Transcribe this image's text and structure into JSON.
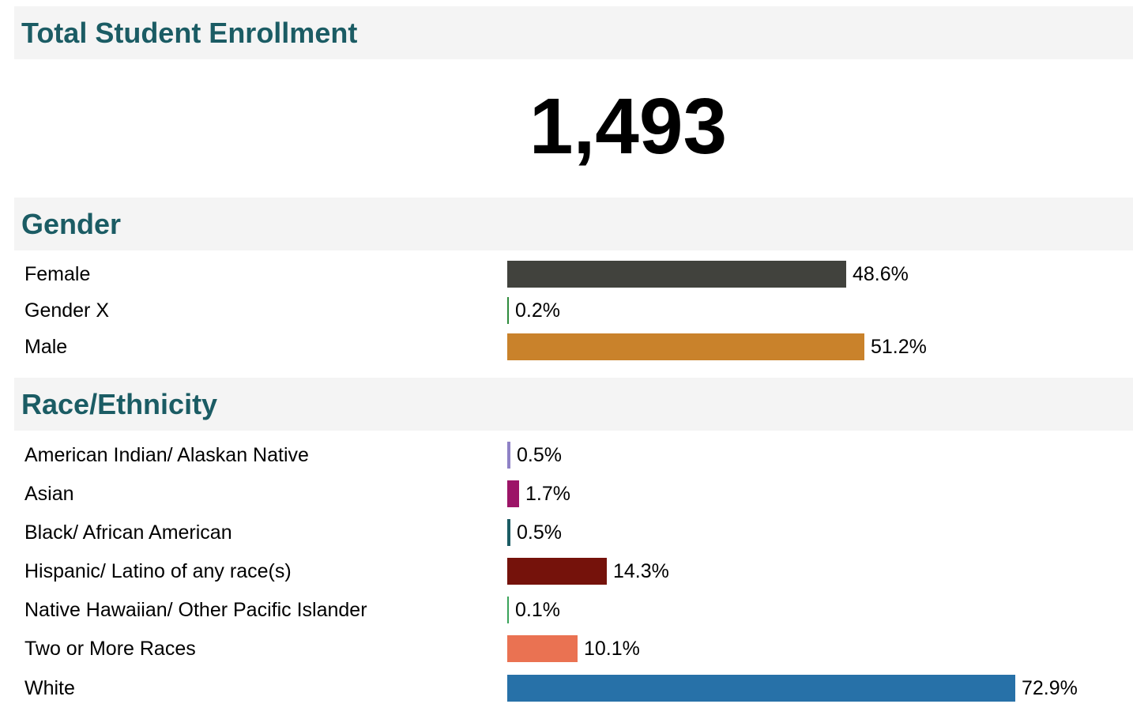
{
  "sections": {
    "total": {
      "title": "Total Student Enrollment",
      "value": "1,493"
    },
    "gender": {
      "title": "Gender"
    },
    "race": {
      "title": "Race/Ethnicity"
    }
  },
  "chart_data": [
    {
      "type": "bar",
      "orientation": "horizontal",
      "categories": [
        "Female",
        "Gender X",
        "Male"
      ],
      "values": [
        48.6,
        0.2,
        51.2
      ],
      "value_labels": [
        "48.6%",
        "0.2%",
        "51.2%"
      ],
      "colors": [
        "#41423d",
        "#2e8b3c",
        "#c9822b"
      ],
      "xlim": [
        0,
        100
      ],
      "grid": false
    },
    {
      "type": "bar",
      "orientation": "horizontal",
      "categories": [
        "American Indian/ Alaskan Native",
        "Asian",
        "Black/ African American",
        "Hispanic/ Latino of any race(s)",
        "Native Hawaiian/ Other Pacific Islander",
        "Two or More Races",
        "White"
      ],
      "values": [
        0.5,
        1.7,
        0.5,
        14.3,
        0.1,
        10.1,
        72.9
      ],
      "value_labels": [
        "0.5%",
        "1.7%",
        "0.5%",
        "14.3%",
        "0.1%",
        "10.1%",
        "72.9%"
      ],
      "colors": [
        "#8f82c6",
        "#9c1467",
        "#1b5c64",
        "#75120b",
        "#3aa35a",
        "#ea7252",
        "#2771a8"
      ],
      "xlim": [
        0,
        100
      ],
      "grid": false
    }
  ]
}
